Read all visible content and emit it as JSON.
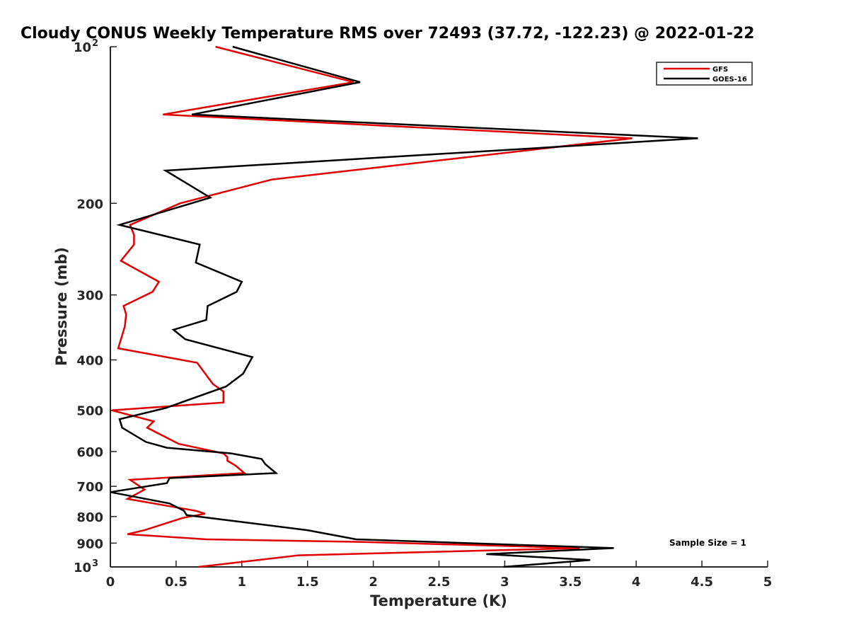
{
  "chart_data": {
    "type": "line",
    "title": "Cloudy CONUS Weekly Temperature RMS over 72493 (37.72, -122.23) @ 2022-01-22",
    "xlabel": "Temperature (K)",
    "ylabel": "Pressure (mb)",
    "xlim": [
      0,
      5
    ],
    "ylim": [
      100,
      1000
    ],
    "y_scale": "log",
    "y_reversed": true,
    "x_ticks": [
      "0",
      "0.5",
      "1",
      "1.5",
      "2",
      "2.5",
      "3",
      "3.5",
      "4",
      "4.5",
      "5"
    ],
    "x_tick_values": [
      0,
      0.5,
      1,
      1.5,
      2,
      2.5,
      3,
      3.5,
      4,
      4.5,
      5
    ],
    "y_ticks": [
      {
        "value": 100,
        "base": "10",
        "exp": "2"
      },
      {
        "value": 200,
        "label": "200"
      },
      {
        "value": 300,
        "label": "300"
      },
      {
        "value": 400,
        "label": "400"
      },
      {
        "value": 500,
        "label": "500"
      },
      {
        "value": 600,
        "label": "600"
      },
      {
        "value": 700,
        "label": "700"
      },
      {
        "value": 800,
        "label": "800"
      },
      {
        "value": 900,
        "label": "900"
      },
      {
        "value": 1000,
        "base": "10",
        "exp": "3"
      }
    ],
    "grid": false,
    "legend_position": "top-right",
    "annotation": "Sample Size = 1",
    "series": [
      {
        "name": "GFS",
        "color": "#e00000",
        "points": [
          [
            0.8,
            100
          ],
          [
            1.85,
            117
          ],
          [
            0.4,
            135
          ],
          [
            3.97,
            150
          ],
          [
            1.23,
            180
          ],
          [
            0.53,
            200
          ],
          [
            0.15,
            220
          ],
          [
            0.18,
            230
          ],
          [
            0.18,
            240
          ],
          [
            0.08,
            258
          ],
          [
            0.37,
            283
          ],
          [
            0.32,
            296
          ],
          [
            0.1,
            315
          ],
          [
            0.12,
            327
          ],
          [
            0.11,
            345
          ],
          [
            0.06,
            380
          ],
          [
            0.66,
            405
          ],
          [
            0.78,
            445
          ],
          [
            0.86,
            460
          ],
          [
            0.86,
            483
          ],
          [
            0.01,
            500
          ],
          [
            0.33,
            525
          ],
          [
            0.28,
            540
          ],
          [
            0.52,
            580
          ],
          [
            0.86,
            605
          ],
          [
            0.89,
            615
          ],
          [
            0.89,
            625
          ],
          [
            0.95,
            638
          ],
          [
            1.02,
            660
          ],
          [
            0.15,
            680
          ],
          [
            0.26,
            710
          ],
          [
            0.13,
            740
          ],
          [
            0.65,
            780
          ],
          [
            0.72,
            790
          ],
          [
            0.55,
            805
          ],
          [
            0.26,
            850
          ],
          [
            0.13,
            865
          ],
          [
            0.73,
            885
          ],
          [
            1.9,
            895
          ],
          [
            3.57,
            920
          ],
          [
            1.43,
            950
          ],
          [
            0.67,
            1000
          ]
        ]
      },
      {
        "name": "GOES-16",
        "color": "#000000",
        "points": [
          [
            0.93,
            100
          ],
          [
            1.9,
            117
          ],
          [
            0.62,
            135
          ],
          [
            4.47,
            150
          ],
          [
            0.42,
            173
          ],
          [
            0.76,
            195
          ],
          [
            0.07,
            220
          ],
          [
            0.68,
            240
          ],
          [
            0.65,
            260
          ],
          [
            1.0,
            283
          ],
          [
            0.96,
            296
          ],
          [
            0.74,
            315
          ],
          [
            0.73,
            335
          ],
          [
            0.48,
            350
          ],
          [
            0.57,
            365
          ],
          [
            1.08,
            395
          ],
          [
            1.01,
            425
          ],
          [
            0.88,
            450
          ],
          [
            0.42,
            495
          ],
          [
            0.07,
            520
          ],
          [
            0.09,
            540
          ],
          [
            0.27,
            575
          ],
          [
            0.43,
            590
          ],
          [
            0.92,
            605
          ],
          [
            1.15,
            620
          ],
          [
            1.18,
            635
          ],
          [
            1.26,
            660
          ],
          [
            0.45,
            675
          ],
          [
            0.43,
            690
          ],
          [
            0.0,
            718
          ],
          [
            0.45,
            755
          ],
          [
            0.56,
            780
          ],
          [
            0.58,
            795
          ],
          [
            1.5,
            850
          ],
          [
            1.87,
            885
          ],
          [
            3.83,
            920
          ],
          [
            2.86,
            945
          ],
          [
            3.65,
            970
          ],
          [
            2.99,
            1000
          ]
        ]
      }
    ]
  }
}
